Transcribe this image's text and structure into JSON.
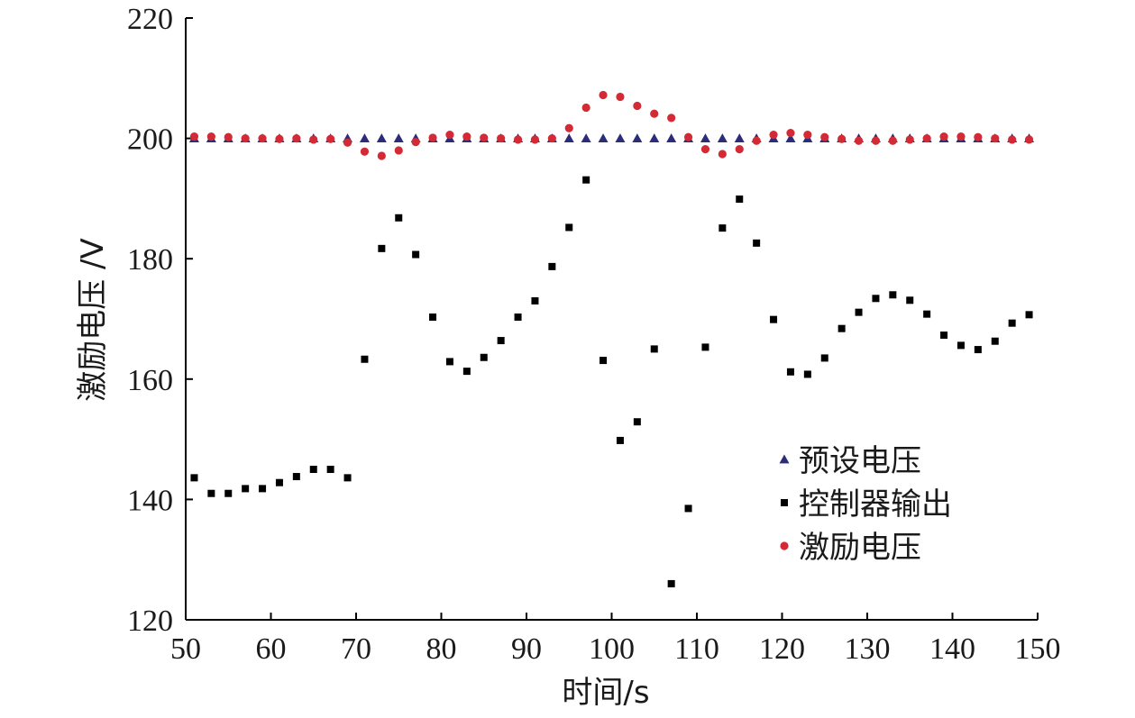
{
  "chart_data": {
    "type": "scatter",
    "title": "",
    "xlabel": "时间/s",
    "ylabel": "激励电压 /V",
    "xlim": [
      50,
      150
    ],
    "ylim": [
      120,
      220
    ],
    "xticks": [
      50,
      60,
      70,
      80,
      90,
      100,
      110,
      120,
      130,
      140,
      150
    ],
    "yticks": [
      120,
      140,
      160,
      180,
      200,
      220
    ],
    "grid": false,
    "legend_position": "bottom-right",
    "series": [
      {
        "name": "预设电压",
        "marker": "triangle",
        "color": "#2b2d7a",
        "x": [
          51,
          53,
          55,
          57,
          59,
          61,
          63,
          65,
          67,
          69,
          71,
          73,
          75,
          77,
          79,
          81,
          83,
          85,
          87,
          89,
          91,
          93,
          95,
          97,
          99,
          101,
          103,
          105,
          107,
          109,
          111,
          113,
          115,
          117,
          119,
          121,
          123,
          125,
          127,
          129,
          131,
          133,
          135,
          137,
          139,
          141,
          143,
          145,
          147,
          149
        ],
        "y": [
          200,
          200,
          200,
          200,
          200,
          200,
          200,
          200,
          200,
          200,
          200,
          200,
          200,
          200,
          200,
          200,
          200,
          200,
          200,
          200,
          200,
          200,
          200,
          200,
          200,
          200,
          200,
          200,
          200,
          200,
          200,
          200,
          200,
          200,
          200,
          200,
          200,
          200,
          200,
          200,
          200,
          200,
          200,
          200,
          200,
          200,
          200,
          200,
          200,
          200
        ]
      },
      {
        "name": "控制器输出",
        "marker": "square",
        "color": "#000000",
        "x": [
          51,
          53,
          55,
          57,
          59,
          61,
          63,
          65,
          67,
          69,
          71,
          73,
          75,
          77,
          79,
          81,
          83,
          85,
          87,
          89,
          91,
          93,
          95,
          97,
          99,
          101,
          103,
          105,
          107,
          109,
          111,
          113,
          115,
          117,
          119,
          121,
          123,
          125,
          127,
          129,
          131,
          133,
          135,
          137,
          139,
          141,
          143,
          145,
          147,
          149
        ],
        "y": [
          143.6,
          141,
          141,
          141.8,
          141.8,
          142.8,
          143.8,
          145,
          145,
          143.6,
          163.3,
          181.7,
          186.8,
          180.7,
          170.3,
          162.9,
          161.3,
          163.6,
          166.4,
          170.3,
          173,
          178.7,
          185.2,
          193.1,
          163.1,
          149.8,
          152.9,
          165,
          126,
          138.5,
          165.3,
          185.1,
          189.9,
          182.6,
          169.9,
          161.2,
          160.8,
          163.5,
          168.4,
          171.1,
          173.4,
          174,
          173.1,
          170.8,
          167.3,
          165.6,
          164.9,
          166.3,
          169.3,
          170.7
        ]
      },
      {
        "name": "激励电压",
        "marker": "circle",
        "color": "#d42a36",
        "x": [
          51,
          53,
          55,
          57,
          59,
          61,
          63,
          65,
          67,
          69,
          71,
          73,
          75,
          77,
          79,
          81,
          83,
          85,
          87,
          89,
          91,
          93,
          95,
          97,
          99,
          101,
          103,
          105,
          107,
          109,
          111,
          113,
          115,
          117,
          119,
          121,
          123,
          125,
          127,
          129,
          131,
          133,
          135,
          137,
          139,
          141,
          143,
          145,
          147,
          149
        ],
        "y": [
          200.3,
          200.3,
          200.2,
          200,
          200,
          199.9,
          200,
          199.8,
          199.9,
          199.3,
          197.8,
          197.1,
          198,
          199.4,
          200.1,
          200.6,
          200.3,
          200.1,
          200,
          199.8,
          199.8,
          200,
          201.7,
          205.1,
          207.2,
          206.9,
          205.4,
          204.1,
          203.4,
          200.2,
          198.2,
          197.4,
          198.2,
          199.6,
          200.6,
          200.9,
          200.6,
          200.2,
          199.9,
          199.6,
          199.6,
          199.6,
          199.8,
          200,
          200.3,
          200.3,
          200.2,
          200,
          199.8,
          199.8
        ]
      }
    ]
  }
}
